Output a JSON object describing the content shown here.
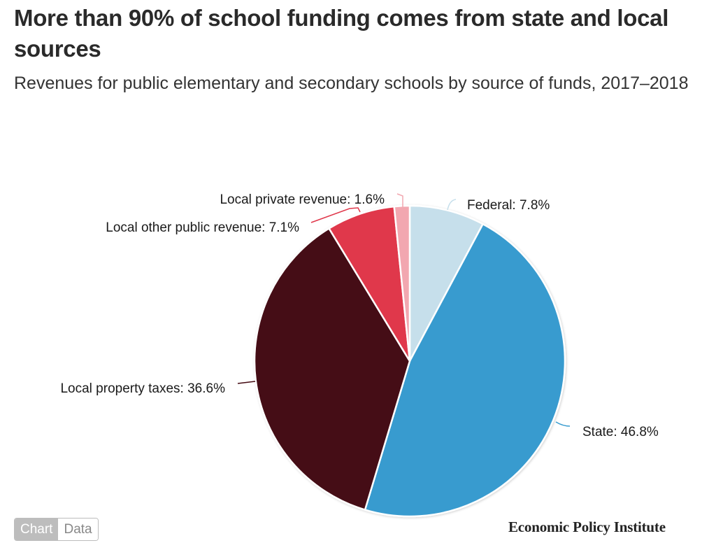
{
  "header": {
    "title": "More than 90% of school funding comes from state and local sources",
    "subtitle": "Revenues for public elementary and secondary schools by source of funds, 2017–2018"
  },
  "toggle": {
    "chart_label": "Chart",
    "data_label": "Data",
    "active": "Chart"
  },
  "brand": {
    "name": "Economic Policy Institute"
  },
  "labels": {
    "federal": "Federal: 7.8%",
    "state": "State: 46.8%",
    "property": "Local property taxes: 36.6%",
    "other_public": "Local other public revenue: 7.1%",
    "private": "Local private revenue: 1.6%"
  },
  "colors": {
    "federal": "#c6dfeb",
    "state": "#379bcf",
    "property": "#440a12",
    "other_public": "#e0384b",
    "private": "#f2a7b0"
  },
  "chart_data": {
    "type": "pie",
    "title": "More than 90% of school funding comes from state and local sources",
    "subtitle": "Revenues for public elementary and secondary schools by source of funds, 2017–2018",
    "categories": [
      "Federal",
      "State",
      "Local property taxes",
      "Local other public revenue",
      "Local private revenue"
    ],
    "values": [
      7.8,
      46.8,
      36.6,
      7.1,
      1.6
    ],
    "unit": "%",
    "colors": [
      "#c6dfeb",
      "#379bcf",
      "#440a12",
      "#e0384b",
      "#f2a7b0"
    ],
    "start_angle": "12 o'clock, clockwise",
    "legend": "none (data labels with leader lines)"
  }
}
